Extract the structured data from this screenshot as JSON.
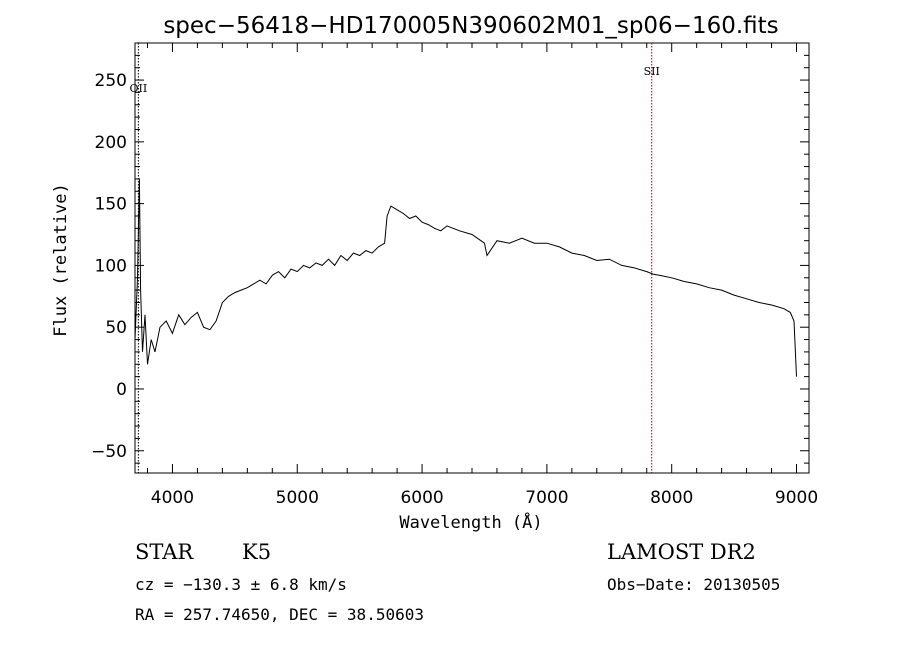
{
  "chart_data": {
    "type": "line",
    "title": "spec−56418−HD170005N390602M01_sp06−160.fits",
    "xlabel": "Wavelength (Å)",
    "ylabel": "Flux (relative)",
    "xlim": [
      3700,
      9100
    ],
    "ylim": [
      -68,
      280
    ],
    "x_ticks": [
      4000,
      5000,
      6000,
      7000,
      8000,
      9000
    ],
    "y_ticks": [
      -50,
      0,
      50,
      100,
      150,
      200,
      250
    ],
    "y_tick_labels": [
      "−50",
      "0",
      "50",
      "100",
      "150",
      "200",
      "250"
    ],
    "spectral_lines": [
      {
        "label": "OII",
        "wavelength": 3727,
        "color": "#000000"
      },
      {
        "label": "SII",
        "wavelength": 7840,
        "color": "#a00000"
      }
    ],
    "series": [
      {
        "x": [
          3700,
          3720,
          3735,
          3745,
          3760,
          3780,
          3800,
          3830,
          3860,
          3900,
          3950,
          4000,
          4050,
          4100,
          4150,
          4200,
          4250,
          4300,
          4350,
          4400,
          4450,
          4500,
          4550,
          4600,
          4650,
          4700,
          4750,
          4800,
          4850,
          4900,
          4950,
          5000,
          5050,
          5100,
          5150,
          5200,
          5250,
          5300,
          5350,
          5400,
          5450,
          5500,
          5550,
          5600,
          5650,
          5700,
          5720,
          5750,
          5800,
          5850,
          5900,
          5950,
          6000,
          6050,
          6100,
          6150,
          6200,
          6300,
          6400,
          6500,
          6520,
          6600,
          6700,
          6800,
          6900,
          7000,
          7100,
          7200,
          7300,
          7400,
          7500,
          7600,
          7700,
          7800,
          7850,
          7900,
          8000,
          8100,
          8200,
          8300,
          8400,
          8500,
          8600,
          8700,
          8800,
          8900,
          8950,
          8980,
          9000
        ],
        "y": [
          40,
          90,
          170,
          80,
          30,
          60,
          20,
          40,
          30,
          50,
          55,
          45,
          60,
          52,
          58,
          62,
          50,
          48,
          55,
          70,
          75,
          78,
          80,
          82,
          85,
          88,
          85,
          92,
          95,
          90,
          97,
          95,
          100,
          98,
          102,
          100,
          105,
          100,
          108,
          104,
          110,
          108,
          112,
          110,
          115,
          118,
          140,
          148,
          145,
          142,
          138,
          140,
          135,
          133,
          130,
          128,
          132,
          128,
          125,
          118,
          108,
          120,
          118,
          122,
          118,
          118,
          115,
          110,
          108,
          104,
          105,
          100,
          98,
          95,
          93,
          92,
          90,
          87,
          85,
          82,
          80,
          76,
          73,
          70,
          68,
          65,
          62,
          55,
          10
        ]
      }
    ],
    "grid": false
  },
  "info": {
    "object_class": "STAR",
    "subclass": "K5",
    "survey": "LAMOST DR2",
    "redshift": "cz = −130.3 ± 6.8 km/s",
    "obs_date": "Obs−Date: 20130505",
    "coords": "RA = 257.74650, DEC =  38.50603"
  }
}
